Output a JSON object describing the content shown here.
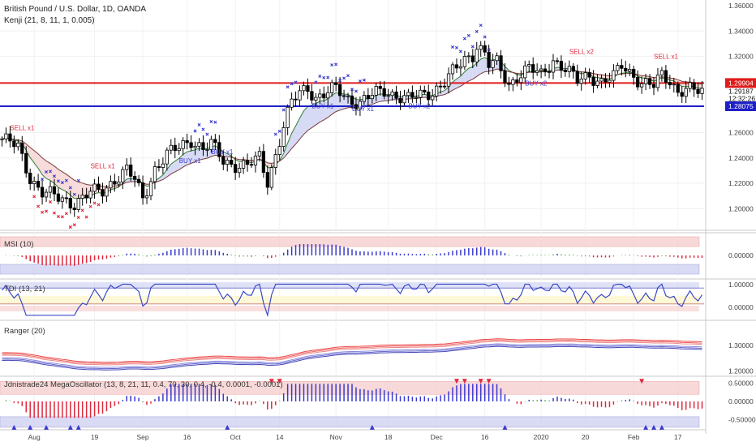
{
  "header": {
    "title": "British Pound / U.S. Dollar, 1D, OANDA",
    "indicator": "Kenji (21, 8, 11, 1, 0.005)"
  },
  "price_axis": {
    "ticks": [
      "1.36000",
      "1.34000",
      "1.32000",
      "1.29904",
      "1.29187",
      "12:32:26",
      "1.28075",
      "1.26000",
      "1.24000",
      "1.22000",
      "1.20000"
    ],
    "red_line_label": "1.29904",
    "current_price_label": "1.29187",
    "countdown": "12:32:26",
    "blue_line_label": "1.28075"
  },
  "time_axis": [
    "Aug",
    "19",
    "Sep",
    "16",
    "Oct",
    "14",
    "Nov",
    "18",
    "Dec",
    "16",
    "2020",
    "20",
    "Feb",
    "17"
  ],
  "panels": {
    "msi": {
      "label": "MSI (10)",
      "ticks": [
        "0.00000"
      ]
    },
    "tdi": {
      "label": "TDI (13, 21)",
      "ticks": [
        "1.00000",
        "0.00000"
      ]
    },
    "ranger": {
      "label": "Ranger (20)",
      "ticks": [
        "1.30000",
        "1.20000"
      ]
    },
    "mega": {
      "label": "Jdnistrade24 MegaOscillator (13, 8, 21, 11, 0.4, 70, 30, 0.4, -0.4, 0.0001, -0.0001)",
      "ticks": [
        "0.50000",
        "0.00000",
        "-0.50000"
      ]
    }
  },
  "signals": [
    {
      "text": "SELL x1"
    },
    {
      "text": "SELL x1"
    },
    {
      "text": "BUY x1"
    },
    {
      "text": "BUY x1"
    },
    {
      "text": "BUY x1"
    },
    {
      "text": "BUY x1"
    },
    {
      "text": "BUY x2"
    },
    {
      "text": "SELL x2"
    },
    {
      "text": "BUY x2"
    },
    {
      "text": "SELL x1"
    }
  ],
  "colors": {
    "red_level": "#e01b1b",
    "blue_level": "#1f1fc7",
    "up_candle": "#ffffff",
    "down_candle": "#000000",
    "sell_marker": "#e0283c",
    "buy_marker": "#3a3ad0"
  },
  "chart_data": {
    "type": "candlestick",
    "title": "British Pound / U.S. Dollar, 1D, OANDA",
    "ylim": [
      1.185,
      1.37
    ],
    "horizontal_levels": [
      1.29904,
      1.28075
    ],
    "last_price": 1.29187,
    "close_path": [
      [
        0,
        1.255
      ],
      [
        4,
        1.248
      ],
      [
        7,
        1.225
      ],
      [
        10,
        1.213
      ],
      [
        14,
        1.208
      ],
      [
        18,
        1.205
      ],
      [
        22,
        1.212
      ],
      [
        25,
        1.214
      ],
      [
        28,
        1.224
      ],
      [
        31,
        1.23
      ],
      [
        33,
        1.222
      ],
      [
        35,
        1.208
      ],
      [
        38,
        1.232
      ],
      [
        41,
        1.242
      ],
      [
        44,
        1.248
      ],
      [
        47,
        1.255
      ],
      [
        50,
        1.247
      ],
      [
        52,
        1.25
      ],
      [
        55,
        1.238
      ],
      [
        58,
        1.235
      ],
      [
        61,
        1.233
      ],
      [
        64,
        1.24
      ],
      [
        66,
        1.222
      ],
      [
        68,
        1.243
      ],
      [
        70,
        1.265
      ],
      [
        72,
        1.283
      ],
      [
        74,
        1.291
      ],
      [
        76,
        1.296
      ],
      [
        78,
        1.288
      ],
      [
        80,
        1.29
      ],
      [
        83,
        1.294
      ],
      [
        86,
        1.287
      ],
      [
        89,
        1.284
      ],
      [
        92,
        1.289
      ],
      [
        95,
        1.293
      ],
      [
        98,
        1.29
      ],
      [
        101,
        1.286
      ],
      [
        104,
        1.289
      ],
      [
        107,
        1.293
      ],
      [
        110,
        1.3
      ],
      [
        113,
        1.31
      ],
      [
        115,
        1.318
      ],
      [
        117,
        1.322
      ],
      [
        118,
        1.33
      ],
      [
        120,
        1.322
      ],
      [
        121,
        1.313
      ],
      [
        123,
        1.314
      ],
      [
        126,
        1.298
      ],
      [
        128,
        1.305
      ],
      [
        131,
        1.31
      ],
      [
        134,
        1.305
      ],
      [
        137,
        1.318
      ],
      [
        140,
        1.31
      ],
      [
        143,
        1.3
      ],
      [
        146,
        1.306
      ],
      [
        149,
        1.3
      ],
      [
        152,
        1.303
      ],
      [
        154,
        1.313
      ],
      [
        157,
        1.306
      ],
      [
        159,
        1.299
      ],
      [
        162,
        1.296
      ],
      [
        164,
        1.305
      ],
      [
        166,
        1.302
      ],
      [
        168,
        1.293
      ],
      [
        170,
        1.294
      ],
      [
        172,
        1.292
      ]
    ],
    "msi_series": {
      "name": "MSI (10)",
      "range": [
        -1,
        1
      ]
    },
    "tdi_series": {
      "name": "TDI (13, 21)",
      "range": [
        -0.3,
        1.1
      ]
    },
    "ranger_series": {
      "name": "Ranger (20)",
      "range": [
        1.185,
        1.37
      ]
    },
    "mega_series": {
      "name": "MegaOscillator",
      "range": [
        -0.6,
        0.6
      ]
    },
    "x_label_positions": [
      8,
      23,
      35,
      46,
      58,
      69,
      83,
      96,
      108,
      120,
      134,
      145,
      157,
      168
    ]
  }
}
